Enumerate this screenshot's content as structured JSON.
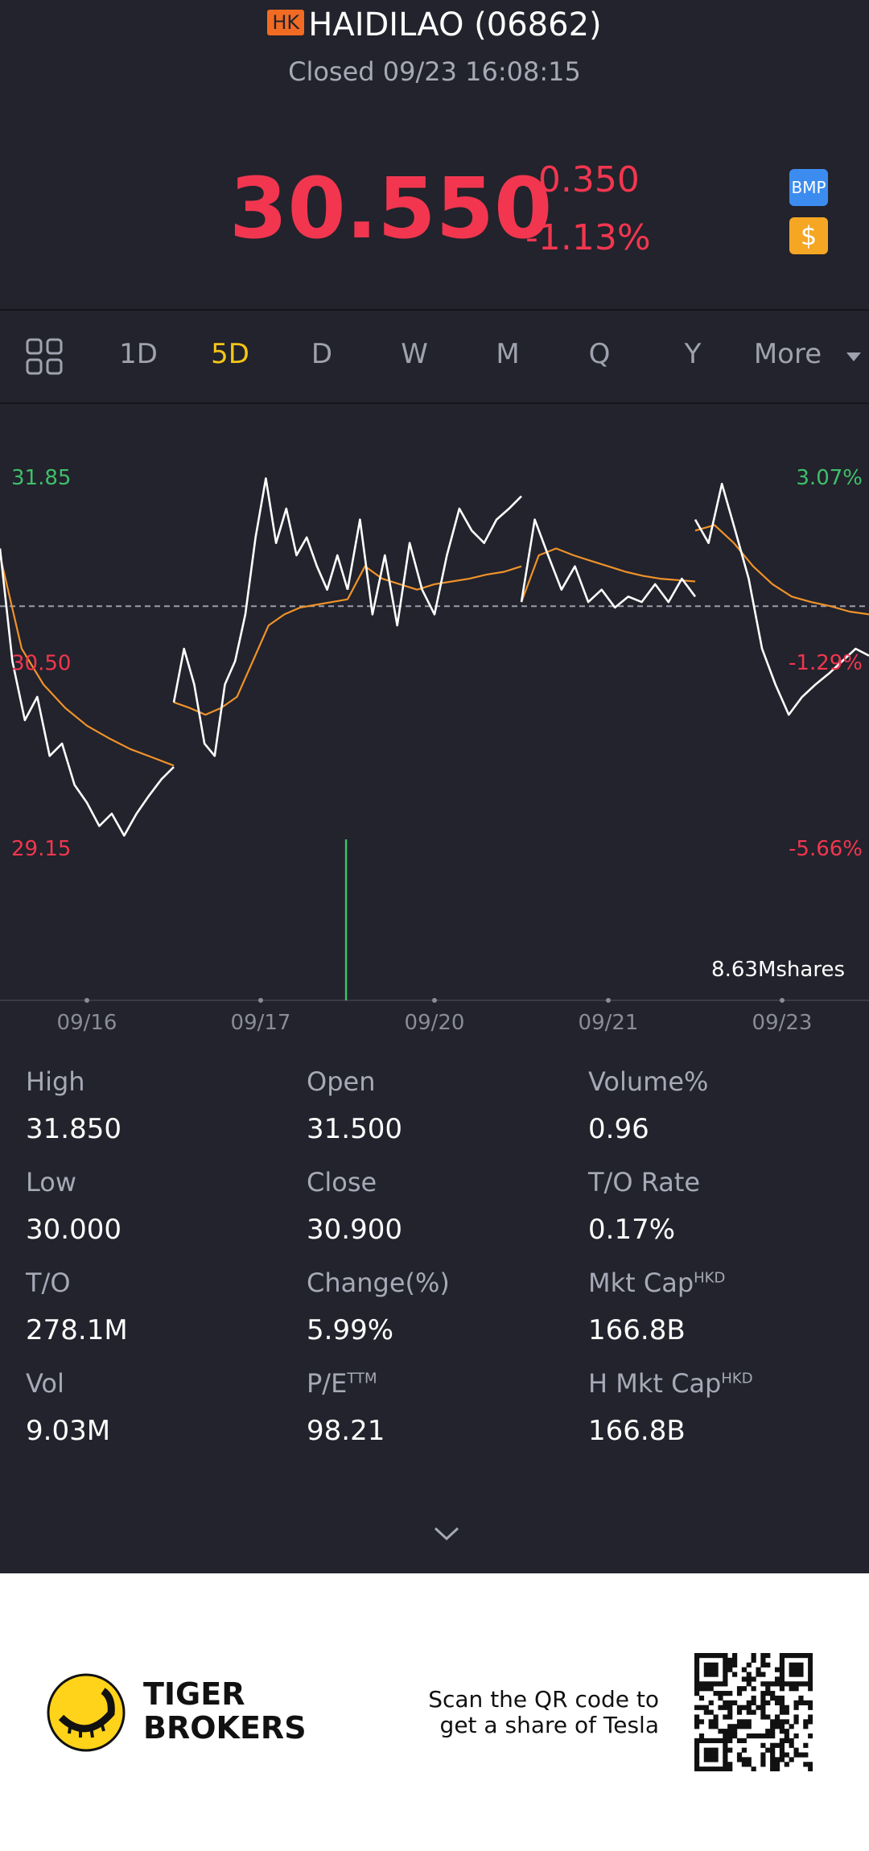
{
  "header": {
    "badge": "HK",
    "title": "HAIDILAO (06862)",
    "status": "Closed 09/23 16:08:15"
  },
  "quote": {
    "price": "30.550",
    "change": "-0.350",
    "change_pct": "-1.13%",
    "icons": [
      "BMP",
      "$"
    ]
  },
  "tabs": {
    "items": [
      "1D",
      "5D",
      "D",
      "W",
      "M",
      "Q",
      "Y",
      "More"
    ],
    "active": "5D"
  },
  "chart_data": {
    "type": "intraday-line",
    "categories": [
      "09/16",
      "09/17",
      "09/20",
      "09/21",
      "09/23"
    ],
    "ylim": [
      29.15,
      31.85
    ],
    "yticks": [
      31.85,
      {
        "value": 30.5,
        "label": "30.50"
      },
      29.15
    ],
    "y2lim": [
      -5.66,
      3.07
    ],
    "y2ticks": [
      {
        "value": 3.07,
        "label": "3.07%"
      },
      {
        "value": -1.29,
        "label": "-1.29%"
      },
      {
        "value": -5.66,
        "label": "-5.66%"
      }
    ],
    "reference": 30.9,
    "price_color": "#ffffff",
    "average_color": "#f0922a",
    "up_color": "#3fbf6a",
    "down_color": "#f2364f",
    "price": [
      [
        31.32,
        30.5,
        30.07,
        30.24,
        29.81,
        29.9,
        29.6,
        29.47,
        29.3,
        29.39,
        29.23,
        29.39,
        29.52,
        29.64,
        29.73
      ],
      [
        30.2,
        30.59,
        30.33,
        29.9,
        29.81,
        30.33,
        30.5,
        30.84,
        31.4,
        31.83,
        31.36,
        31.61,
        31.27,
        31.4,
        31.19,
        31.02,
        31.27,
        31.02
      ],
      [
        31.02,
        31.53,
        30.84,
        31.27,
        30.76,
        31.36,
        31.02,
        30.84,
        31.27,
        31.61,
        31.45,
        31.36,
        31.53,
        31.61,
        31.7
      ],
      [
        30.93,
        31.53,
        31.27,
        31.02,
        31.19,
        30.93,
        31.02,
        30.89,
        30.97,
        30.93,
        31.06,
        30.93,
        31.1,
        30.97
      ],
      [
        31.53,
        31.36,
        31.79,
        31.45,
        31.1,
        30.59,
        30.33,
        30.11,
        30.24,
        30.33,
        30.41,
        30.5,
        30.59,
        30.54
      ]
    ],
    "average": [
      [
        31.27,
        30.59,
        30.33,
        30.16,
        30.03,
        29.94,
        29.86,
        29.8,
        29.74
      ],
      [
        30.2,
        30.16,
        30.11,
        30.16,
        30.24,
        30.5,
        30.76,
        30.84,
        30.89,
        30.91,
        30.93,
        30.95
      ],
      [
        30.95,
        31.19,
        31.1,
        31.06,
        31.02,
        31.06,
        31.08,
        31.1,
        31.13,
        31.15,
        31.19
      ],
      [
        30.93,
        31.27,
        31.32,
        31.27,
        31.23,
        31.19,
        31.15,
        31.12,
        31.1,
        31.09,
        31.08
      ],
      [
        31.45,
        31.49,
        31.36,
        31.19,
        31.06,
        30.97,
        30.93,
        30.9,
        30.86,
        30.84
      ]
    ],
    "volume_peak": 8.63,
    "volume_peak_label": "8.63Mshares",
    "volume_color": "#3fbf6a"
  },
  "stats": [
    {
      "label": "High",
      "value": "31.850"
    },
    {
      "label": "Open",
      "value": "31.500"
    },
    {
      "label": "Volume%",
      "value": "0.96"
    },
    {
      "label": "Low",
      "value": "30.000"
    },
    {
      "label": "Close",
      "value": "30.900"
    },
    {
      "label": "T/O Rate",
      "value": "0.17%"
    },
    {
      "label": "T/O",
      "value": "278.1M"
    },
    {
      "label": "Change(%)",
      "value": "5.99%"
    },
    {
      "label": "Mkt Cap",
      "sup": "HKD",
      "value": "166.8B"
    },
    {
      "label": "Vol",
      "value": "9.03M"
    },
    {
      "label": "P/E",
      "sup": "TTM",
      "value": "98.21"
    },
    {
      "label": "H Mkt Cap",
      "sup": "HKD",
      "value": "166.8B"
    }
  ],
  "footer": {
    "brand": [
      "TIGER",
      "BROKERS"
    ],
    "promo": [
      "Scan the QR code to",
      "get a share of Tesla"
    ]
  }
}
